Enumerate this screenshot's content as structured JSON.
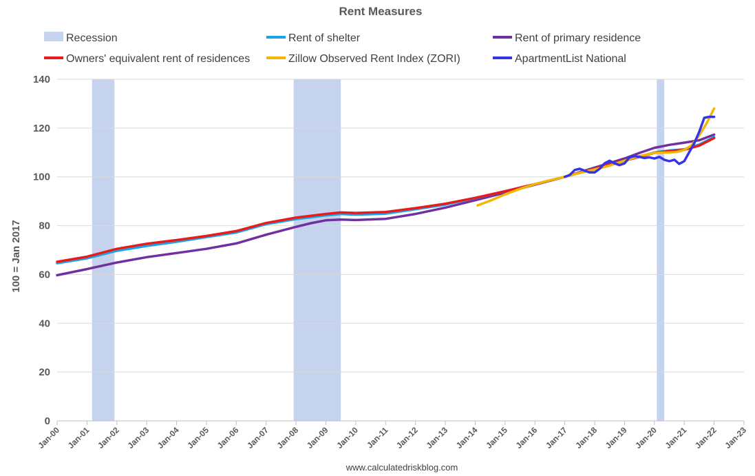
{
  "chart_data": {
    "type": "line",
    "title": "Rent Measures",
    "ylabel": "100 = Jan 2017",
    "xlabel": "",
    "source": "www.calculatedriskblog.com",
    "ylim": [
      0,
      140
    ],
    "yticks": [
      0,
      20,
      40,
      60,
      80,
      100,
      120,
      140
    ],
    "xlim": [
      2000,
      2023
    ],
    "xtick_labels": [
      "Jan-00",
      "Jan-01",
      "Jan-02",
      "Jan-03",
      "Jan-04",
      "Jan-05",
      "Jan-06",
      "Jan-07",
      "Jan-08",
      "Jan-09",
      "Jan-10",
      "Jan-11",
      "Jan-12",
      "Jan-13",
      "Jan-14",
      "Jan-15",
      "Jan-16",
      "Jan-17",
      "Jan-18",
      "Jan-19",
      "Jan-20",
      "Jan-21",
      "Jan-22",
      "Jan-23"
    ],
    "grid": "horizontal",
    "legend": [
      {
        "name": "Recession",
        "color": "#c5d3ee",
        "kind": "box"
      },
      {
        "name": "Rent of shelter",
        "color": "#1aa3e8",
        "kind": "line"
      },
      {
        "name": "Rent of primary residence",
        "color": "#7030a0",
        "kind": "line"
      },
      {
        "name": "Owners' equivalent rent of residences",
        "color": "#e81b1b",
        "kind": "line"
      },
      {
        "name": "Zillow Observed Rent Index (ZORI)",
        "color": "#f2b705",
        "kind": "line"
      },
      {
        "name": "ApartmentList National",
        "color": "#3535e8",
        "kind": "line"
      }
    ],
    "recessions": [
      {
        "start": 2001.17,
        "end": 2001.92
      },
      {
        "start": 2007.92,
        "end": 2009.5
      },
      {
        "start": 2020.08,
        "end": 2020.33
      }
    ],
    "series": [
      {
        "name": "Rent of primary residence",
        "color": "#7030a0",
        "x": [
          2000,
          2001,
          2002,
          2003,
          2004,
          2005,
          2006,
          2007,
          2008,
          2008.5,
          2009,
          2009.5,
          2010,
          2011,
          2012,
          2013,
          2014,
          2015,
          2016,
          2017,
          2018,
          2019,
          2019.5,
          2020,
          2020.5,
          2021,
          2021.5,
          2022
        ],
        "y": [
          59.7,
          62.2,
          64.9,
          67.1,
          68.8,
          70.5,
          72.7,
          76.3,
          79.5,
          81.0,
          82.2,
          82.5,
          82.3,
          82.8,
          84.8,
          87.4,
          90.4,
          93.5,
          96.8,
          100,
          103.8,
          107.5,
          109.8,
          111.9,
          113.1,
          114.0,
          115.0,
          117.3
        ]
      },
      {
        "name": "Rent of shelter",
        "color": "#1aa3e8",
        "x": [
          2000,
          2001,
          2002,
          2003,
          2004,
          2005,
          2006,
          2007,
          2008,
          2009,
          2009.5,
          2010,
          2011,
          2012,
          2013,
          2014,
          2015,
          2016,
          2017,
          2018,
          2019,
          2020,
          2020.5,
          2021,
          2021.5,
          2022
        ],
        "y": [
          64.6,
          66.6,
          69.7,
          71.7,
          73.4,
          75.3,
          77.2,
          80.6,
          82.7,
          84.2,
          84.8,
          84.5,
          84.9,
          86.7,
          88.6,
          91.3,
          94.1,
          97.0,
          100,
          103.3,
          106.6,
          110.0,
          110.8,
          111.3,
          113.2,
          116.3
        ]
      },
      {
        "name": "Owners' equivalent rent of residences",
        "color": "#e81b1b",
        "x": [
          2000,
          2001,
          2002,
          2003,
          2004,
          2005,
          2006,
          2007,
          2008,
          2009,
          2009.5,
          2010,
          2011,
          2012,
          2013,
          2014,
          2015,
          2016,
          2017,
          2018,
          2019,
          2020,
          2020.5,
          2021,
          2021.5,
          2022
        ],
        "y": [
          65.2,
          67.3,
          70.5,
          72.6,
          74.1,
          75.8,
          77.8,
          81.1,
          83.3,
          84.8,
          85.4,
          85.2,
          85.6,
          87.2,
          89.0,
          91.4,
          94.1,
          97.0,
          100,
          103.3,
          106.6,
          109.8,
          110.6,
          111.1,
          112.8,
          115.9
        ]
      },
      {
        "name": "Zillow Observed Rent Index (ZORI)",
        "color": "#f2b705",
        "x": [
          2014.08,
          2014.5,
          2015,
          2015.5,
          2016,
          2016.5,
          2017,
          2017.5,
          2018,
          2018.5,
          2019,
          2019.5,
          2020,
          2020.5,
          2020.75,
          2021,
          2021.25,
          2021.5,
          2021.75,
          2022
        ],
        "y": [
          88.3,
          90.2,
          92.8,
          95.1,
          97.0,
          98.6,
          100,
          101.6,
          103.0,
          104.6,
          106.6,
          108.5,
          109.8,
          110.0,
          110.2,
          111.0,
          113.0,
          117.0,
          122.0,
          128.0
        ]
      },
      {
        "name": "ApartmentList National",
        "color": "#3535e8",
        "x": [
          2017,
          2017.17,
          2017.33,
          2017.5,
          2017.67,
          2017.83,
          2018,
          2018.17,
          2018.33,
          2018.5,
          2018.67,
          2018.83,
          2019,
          2019.17,
          2019.33,
          2019.5,
          2019.67,
          2019.83,
          2020,
          2020.17,
          2020.33,
          2020.5,
          2020.67,
          2020.83,
          2021,
          2021.17,
          2021.33,
          2021.5,
          2021.67,
          2021.83,
          2022
        ],
        "y": [
          100,
          100.8,
          102.8,
          103.3,
          102.5,
          101.8,
          101.8,
          103.3,
          105.5,
          106.6,
          105.5,
          104.8,
          105.5,
          108.0,
          108.5,
          108.2,
          107.7,
          108.0,
          107.5,
          108.2,
          107.0,
          106.4,
          107.0,
          105.3,
          106.4,
          110.2,
          113.6,
          118.4,
          124.2,
          124.6,
          124.6
        ]
      }
    ]
  }
}
